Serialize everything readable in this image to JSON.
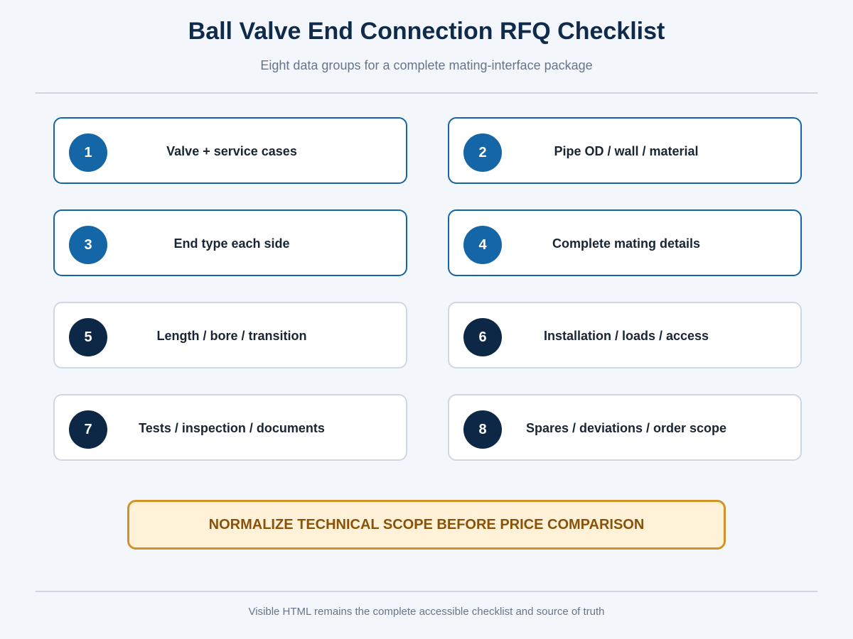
{
  "header": {
    "title": "Ball Valve End Connection RFQ Checklist",
    "subtitle": "Eight data groups for a complete mating-interface package"
  },
  "checklist": {
    "items": [
      {
        "number": "1",
        "label": "Valve + service cases",
        "style": "blue"
      },
      {
        "number": "2",
        "label": "Pipe OD / wall / material",
        "style": "blue"
      },
      {
        "number": "3",
        "label": "End type each side",
        "style": "blue"
      },
      {
        "number": "4",
        "label": "Complete mating details",
        "style": "blue"
      },
      {
        "number": "5",
        "label": "Length / bore / transition",
        "style": "navy"
      },
      {
        "number": "6",
        "label": "Installation / loads / access",
        "style": "navy"
      },
      {
        "number": "7",
        "label": "Tests / inspection / documents",
        "style": "navy"
      },
      {
        "number": "8",
        "label": "Spares / deviations / order scope",
        "style": "navy"
      }
    ]
  },
  "callout": {
    "text": "NORMALIZE TECHNICAL SCOPE BEFORE PRICE COMPARISON"
  },
  "footer": {
    "text": "Visible HTML remains the complete accessible checklist and source of truth"
  },
  "colors": {
    "background": "#f3f7fb",
    "title": "#0f2a4a",
    "blue_accent": "#1566a6",
    "navy_accent": "#0d2746",
    "callout_fill": "#fff2d8",
    "callout_border": "#d19328",
    "callout_text": "#8a5208"
  }
}
